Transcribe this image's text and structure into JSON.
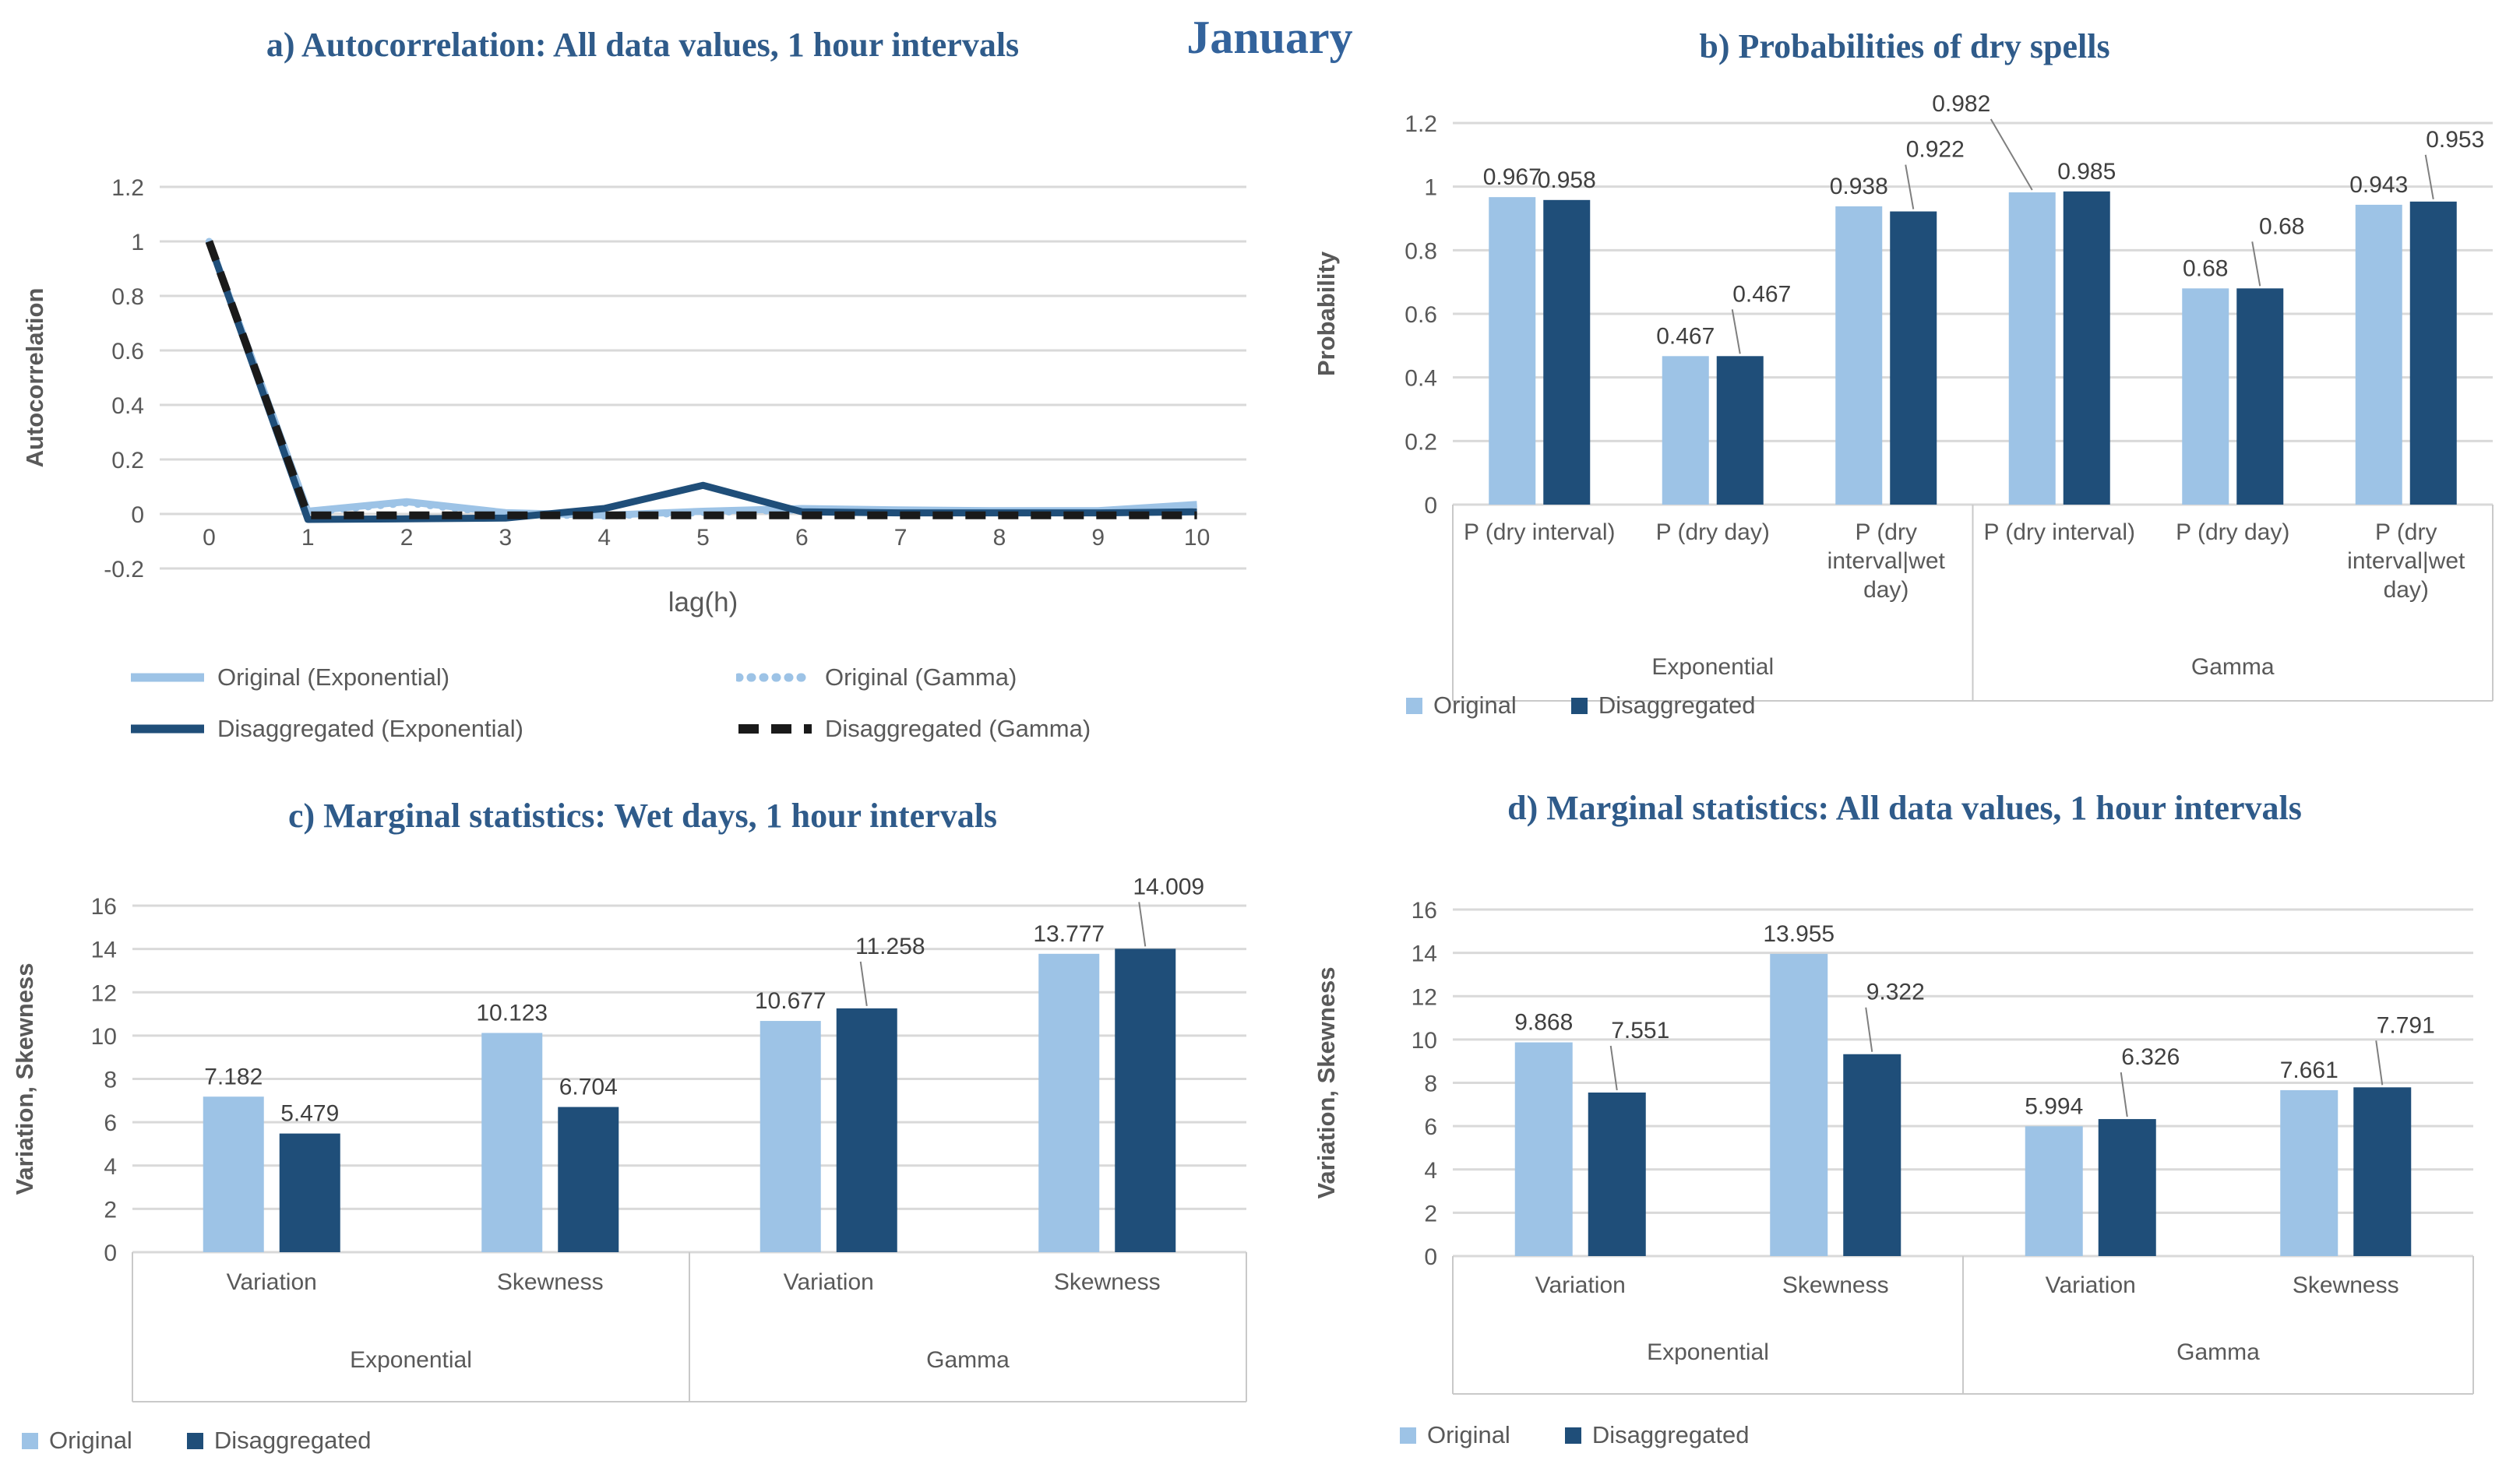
{
  "page_title": "January",
  "colors": {
    "light_blue": "#9DC3E6",
    "dark_blue": "#1F4E79",
    "near_black": "#1A1A1A",
    "title_blue": "#2F5B8A",
    "axis_gray": "#595959",
    "grid_gray": "#D9D9D9",
    "label_gray": "#404040",
    "leader_gray": "#7F7F7F",
    "border_gray": "#C9C9C9"
  },
  "chart_data": [
    {
      "type": "line",
      "title": "a) Autocorrelation: All data values, 1 hour intervals",
      "xlabel": "lag(h)",
      "ylabel": "Autocorrelation",
      "x": [
        0,
        1,
        2,
        3,
        4,
        5,
        6,
        7,
        8,
        9,
        10
      ],
      "ylim": [
        -0.2,
        1.2
      ],
      "ytick_step": 0.2,
      "grid": true,
      "legend_position": "bottom",
      "series": [
        {
          "name": "Original (Exponential)",
          "style": "solid_light",
          "values": [
            1,
            0.01,
            0.045,
            0.005,
            -0.005,
            0.01,
            0.02,
            0.015,
            0.012,
            0.012,
            0.035
          ]
        },
        {
          "name": "Original (Gamma)",
          "style": "dotted_light",
          "values": [
            1,
            0.005,
            0.04,
            0,
            -0.008,
            0.005,
            0.015,
            0.012,
            0.01,
            0.01,
            0.03
          ]
        },
        {
          "name": "Disaggregated (Exponential)",
          "style": "solid_dark",
          "values": [
            1,
            -0.02,
            -0.018,
            -0.015,
            0.02,
            0.105,
            0.008,
            0.004,
            0.004,
            0.004,
            0.008
          ]
        },
        {
          "name": "Disaggregated (Gamma)",
          "style": "dashed_black",
          "values": [
            1,
            -0.005,
            -0.005,
            -0.005,
            -0.005,
            -0.005,
            -0.005,
            -0.005,
            -0.005,
            -0.005,
            -0.005
          ]
        }
      ]
    },
    {
      "type": "bar",
      "title": "b) Probabilities of dry spells",
      "ylabel": "Probability",
      "ylim": [
        0,
        1.2
      ],
      "ytick_step": 0.2,
      "grid": true,
      "legend_position": "bottom",
      "groups": [
        {
          "label": "Exponential",
          "categories": [
            "P (dry interval)",
            "P (dry day)",
            "P (dry interval|wet day)"
          ]
        },
        {
          "label": "Gamma",
          "categories": [
            "P (dry interval)",
            "P (dry day)",
            "P (dry interval|wet day)"
          ]
        }
      ],
      "series": [
        {
          "name": "Original",
          "color_key": "light",
          "values": [
            0.967,
            0.467,
            0.938,
            0.982,
            0.68,
            0.943
          ]
        },
        {
          "name": "Disaggregated",
          "color_key": "dark",
          "values": [
            0.958,
            0.467,
            0.922,
            0.985,
            0.68,
            0.953
          ]
        }
      ],
      "leaders": {
        "0": [
          3
        ],
        "1": [
          1,
          2,
          4,
          5
        ]
      },
      "label_overrides": [
        {
          "series": 0,
          "cat": 3,
          "dx": -91,
          "dy": -104
        }
      ]
    },
    {
      "type": "bar",
      "title": "c) Marginal statistics: Wet days, 1 hour intervals",
      "ylabel": "Variation, Skewness",
      "ylim": [
        0,
        16
      ],
      "ytick_step": 2,
      "grid": true,
      "legend_position": "bottom",
      "groups": [
        {
          "label": "Exponential",
          "categories": [
            "Variation",
            "Skewness"
          ]
        },
        {
          "label": "Gamma",
          "categories": [
            "Variation",
            "Skewness"
          ]
        }
      ],
      "series": [
        {
          "name": "Original",
          "color_key": "light",
          "values": [
            7.182,
            10.123,
            10.677,
            13.777
          ]
        },
        {
          "name": "Disaggregated",
          "color_key": "dark",
          "values": [
            5.479,
            6.704,
            11.258,
            14.009
          ]
        }
      ],
      "leaders": {
        "1": [
          2,
          3
        ]
      },
      "label_overrides": []
    },
    {
      "type": "bar",
      "title": "d) Marginal statistics: All data values, 1 hour intervals",
      "ylabel": "Variation, Skewness",
      "ylim": [
        0,
        16
      ],
      "ytick_step": 2,
      "grid": true,
      "legend_position": "bottom",
      "groups": [
        {
          "label": "Exponential",
          "categories": [
            "Variation",
            "Skewness"
          ]
        },
        {
          "label": "Gamma",
          "categories": [
            "Variation",
            "Skewness"
          ]
        }
      ],
      "series": [
        {
          "name": "Original",
          "color_key": "light",
          "values": [
            9.868,
            13.955,
            5.994,
            7.661
          ]
        },
        {
          "name": "Disaggregated",
          "color_key": "dark",
          "values": [
            7.551,
            9.322,
            6.326,
            7.791
          ]
        }
      ],
      "leaders": {
        "1": [
          0,
          1,
          2,
          3
        ]
      },
      "label_overrides": []
    }
  ]
}
